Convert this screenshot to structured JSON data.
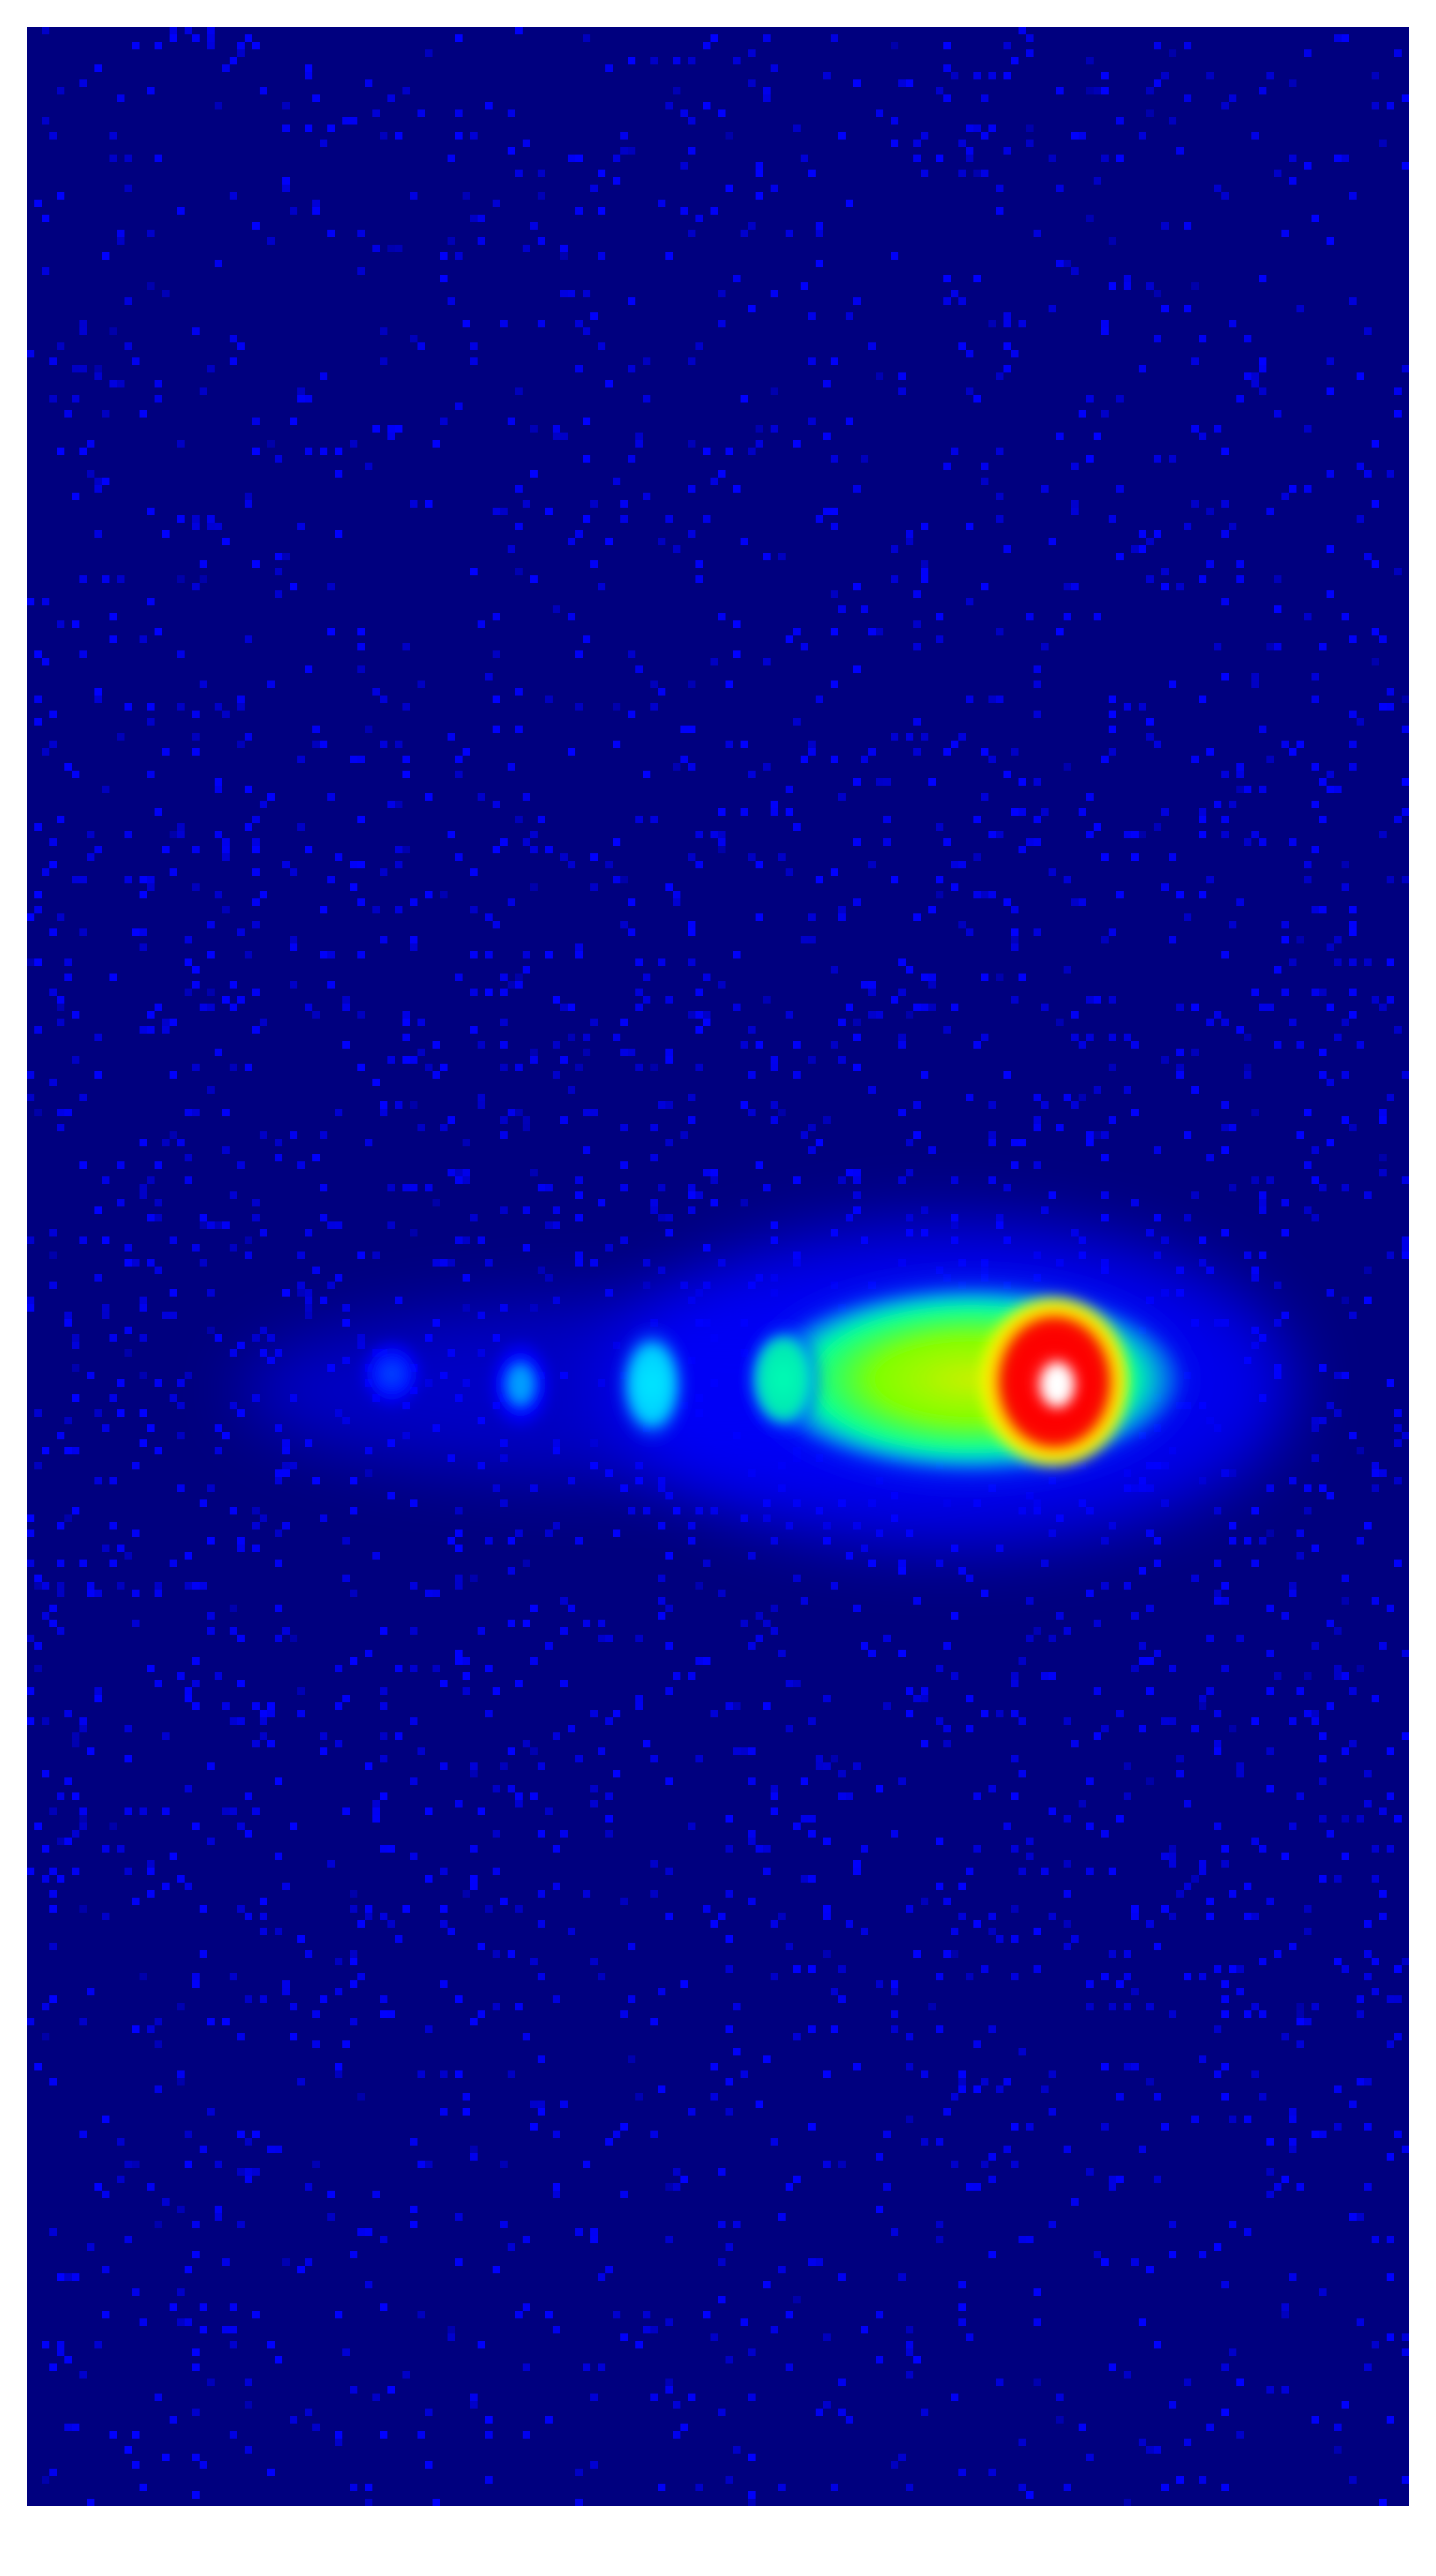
{
  "image": {
    "kind": "false-color intensity map (jet colormap)",
    "colormap": [
      "#00007f",
      "#0000ff",
      "#00ffff",
      "#7fff00",
      "#ffff00",
      "#ff7f00",
      "#ff0000",
      "#ffffff"
    ],
    "background_color": "#00007f",
    "frame_color": "#ffffff",
    "features": [
      {
        "name": "main-peak",
        "color": "#ff0000",
        "center_color": "#ffffff"
      },
      {
        "name": "shoulder",
        "color": "#b5e61d"
      },
      {
        "name": "side-lobe-1",
        "color": "#00ffcc"
      },
      {
        "name": "side-lobe-2",
        "color": "#00c8ff"
      },
      {
        "name": "side-lobe-3",
        "color": "#1e64ff"
      },
      {
        "name": "side-lobe-4",
        "color": "#1e3cff"
      }
    ]
  }
}
